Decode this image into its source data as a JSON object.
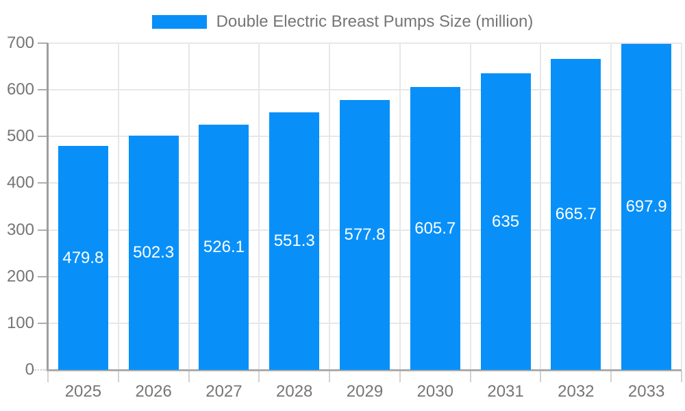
{
  "legend": {
    "label": "Double Electric Breast Pumps Size (million)"
  },
  "chart_data": {
    "type": "bar",
    "title": "Double Electric Breast Pumps Size (million)",
    "categories": [
      "2025",
      "2026",
      "2027",
      "2028",
      "2029",
      "2030",
      "2031",
      "2032",
      "2033"
    ],
    "series": [
      {
        "name": "Double Electric Breast Pumps Size (million)",
        "values": [
          479.8,
          502.3,
          526.1,
          551.3,
          577.8,
          605.7,
          635,
          665.7,
          697.9
        ],
        "value_labels": [
          "479.8",
          "502.3",
          "526.1",
          "551.3",
          "577.8",
          "605.7",
          "635",
          "665.7",
          "697.9"
        ]
      }
    ],
    "xlabel": "",
    "ylabel": "",
    "ylim": [
      0,
      700
    ],
    "yticks": [
      0,
      100,
      200,
      300,
      400,
      500,
      600,
      700
    ],
    "grid": true,
    "legend_position": "top",
    "colors": {
      "bar": "#0990f8",
      "axis_text": "#757575",
      "grid_line": "#e7e7e7",
      "axis_line": "#a6a6a6",
      "tick_line": "#aeaeae",
      "value_label_text": "#ffffff"
    }
  }
}
